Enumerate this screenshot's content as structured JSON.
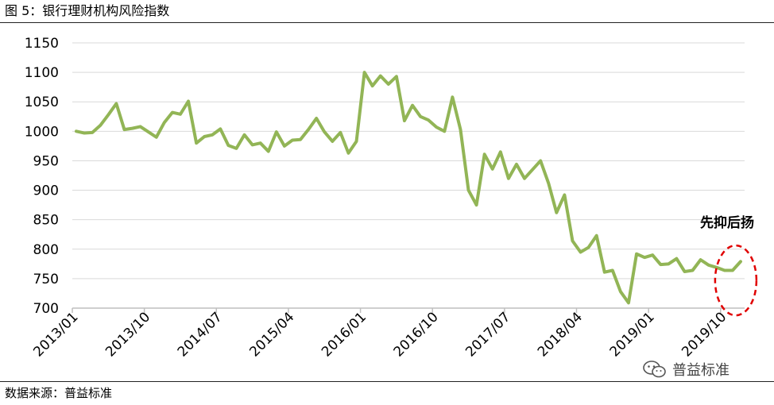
{
  "header": {
    "title": "图 5：银行理财机构风险指数"
  },
  "footer": {
    "source": "数据来源：普益标准",
    "watermark": "普益标准"
  },
  "colors": {
    "line": "#92b556",
    "axis": "#bfbfbf",
    "grid": "#d9d9d9",
    "highlight": "#e00000"
  },
  "chart_data": {
    "type": "line",
    "title": "",
    "xlabel": "",
    "ylabel": "",
    "ylim": [
      700,
      1150
    ],
    "yticks": [
      700,
      750,
      800,
      850,
      900,
      950,
      1000,
      1050,
      1100,
      1150
    ],
    "grid": "horizontal",
    "x_tick_labels": [
      "2013/01",
      "2013/10",
      "2014/07",
      "2015/04",
      "2016/01",
      "2016/10",
      "2017/07",
      "2018/04",
      "2019/01",
      "2019/10"
    ],
    "x_tick_every": 9,
    "series": [
      {
        "values": [
          1000,
          997,
          998,
          1010,
          1028,
          1047,
          1003,
          1005,
          1008,
          999,
          990,
          1015,
          1032,
          1029,
          1051,
          980,
          991,
          994,
          1004,
          976,
          971,
          994,
          977,
          980,
          966,
          999,
          975,
          985,
          986,
          1003,
          1022,
          999,
          983,
          998,
          963,
          983,
          1100,
          1077,
          1094,
          1080,
          1093,
          1018,
          1044,
          1025,
          1019,
          1007,
          1000,
          1058,
          1003,
          900,
          875,
          961,
          936,
          965,
          920,
          944,
          920,
          935,
          950,
          912,
          862,
          892,
          814,
          795,
          803,
          823,
          761,
          764,
          728,
          709,
          792,
          786,
          790,
          774,
          775,
          784,
          762,
          764,
          782,
          773,
          769,
          764,
          764,
          779
        ]
      }
    ],
    "annotations": [
      {
        "text": "先抑后扬"
      }
    ]
  }
}
